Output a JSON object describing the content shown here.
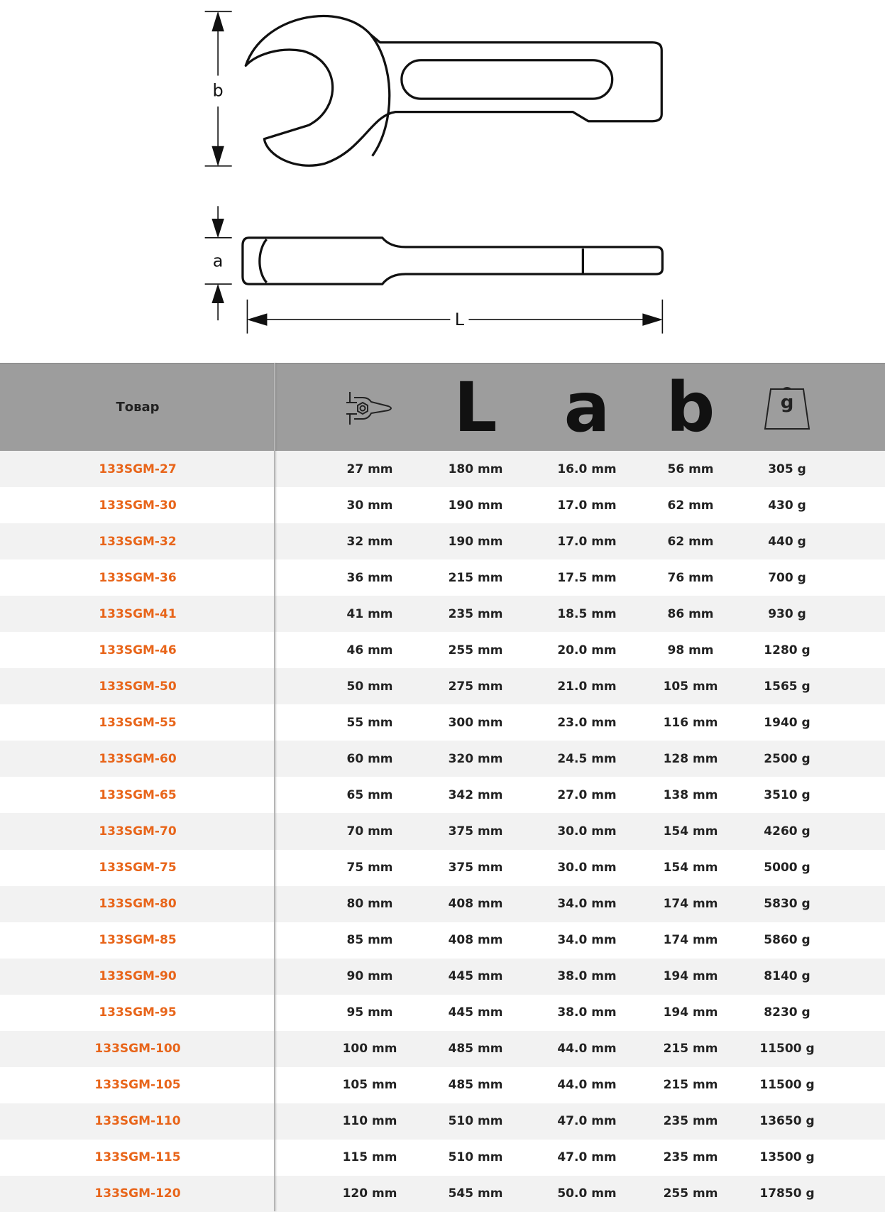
{
  "diagram": {
    "labels": {
      "b": "b",
      "a": "a",
      "L": "L"
    }
  },
  "table": {
    "header": {
      "product": "Товар",
      "L": "L",
      "a": "a",
      "b": "b",
      "weight": "g"
    },
    "rows": [
      [
        "133SGM-27",
        "27 mm",
        "180 mm",
        "16.0 mm",
        "56 mm",
        "305 g"
      ],
      [
        "133SGM-30",
        "30 mm",
        "190 mm",
        "17.0 mm",
        "62 mm",
        "430 g"
      ],
      [
        "133SGM-32",
        "32 mm",
        "190 mm",
        "17.0 mm",
        "62 mm",
        "440 g"
      ],
      [
        "133SGM-36",
        "36 mm",
        "215 mm",
        "17.5 mm",
        "76 mm",
        "700 g"
      ],
      [
        "133SGM-41",
        "41 mm",
        "235 mm",
        "18.5 mm",
        "86 mm",
        "930 g"
      ],
      [
        "133SGM-46",
        "46 mm",
        "255 mm",
        "20.0 mm",
        "98 mm",
        "1280 g"
      ],
      [
        "133SGM-50",
        "50 mm",
        "275 mm",
        "21.0 mm",
        "105 mm",
        "1565 g"
      ],
      [
        "133SGM-55",
        "55 mm",
        "300 mm",
        "23.0 mm",
        "116 mm",
        "1940 g"
      ],
      [
        "133SGM-60",
        "60 mm",
        "320 mm",
        "24.5 mm",
        "128 mm",
        "2500 g"
      ],
      [
        "133SGM-65",
        "65 mm",
        "342 mm",
        "27.0 mm",
        "138 mm",
        "3510 g"
      ],
      [
        "133SGM-70",
        "70 mm",
        "375 mm",
        "30.0 mm",
        "154 mm",
        "4260 g"
      ],
      [
        "133SGM-75",
        "75 mm",
        "375 mm",
        "30.0 mm",
        "154 mm",
        "5000 g"
      ],
      [
        "133SGM-80",
        "80 mm",
        "408 mm",
        "34.0 mm",
        "174 mm",
        "5830 g"
      ],
      [
        "133SGM-85",
        "85 mm",
        "408 mm",
        "34.0 mm",
        "174 mm",
        "5860 g"
      ],
      [
        "133SGM-90",
        "90 mm",
        "445 mm",
        "38.0 mm",
        "194 mm",
        "8140 g"
      ],
      [
        "133SGM-95",
        "95 mm",
        "445 mm",
        "38.0 mm",
        "194 mm",
        "8230 g"
      ],
      [
        "133SGM-100",
        "100 mm",
        "485 mm",
        "44.0 mm",
        "215 mm",
        "11500 g"
      ],
      [
        "133SGM-105",
        "105 mm",
        "485 mm",
        "44.0 mm",
        "215 mm",
        "11500 g"
      ],
      [
        "133SGM-110",
        "110 mm",
        "510 mm",
        "47.0 mm",
        "235 mm",
        "13650 g"
      ],
      [
        "133SGM-115",
        "115 mm",
        "510 mm",
        "47.0 mm",
        "235 mm",
        "13500 g"
      ],
      [
        "133SGM-120",
        "120 mm",
        "545 mm",
        "50.0 mm",
        "255 mm",
        "17850 g"
      ]
    ]
  }
}
